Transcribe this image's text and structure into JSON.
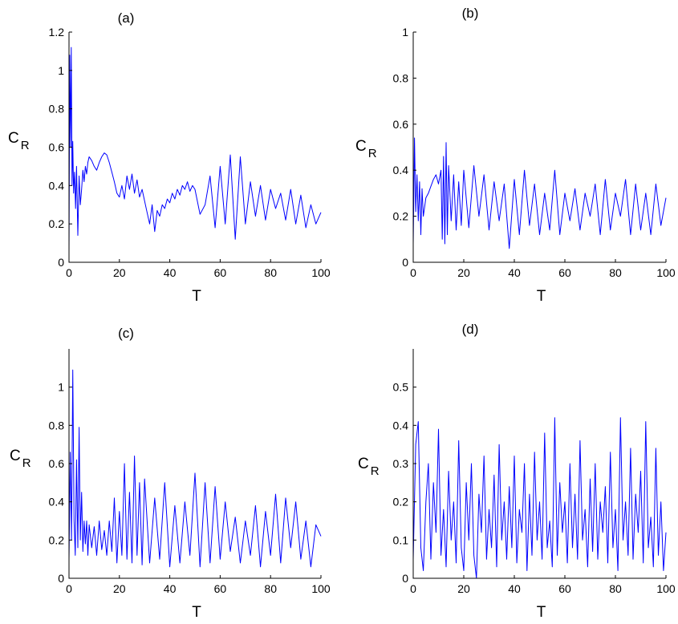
{
  "figure": {
    "line_color": "#0000ff",
    "axis_color": "#000000"
  },
  "chart_data": [
    {
      "type": "line",
      "title": "(a)",
      "xlabel": "T",
      "ylabel": "C",
      "ylabel_sub": "R",
      "xlim": [
        0,
        100
      ],
      "ylim": [
        0,
        1.2
      ],
      "xticks": [
        "0",
        "20",
        "40",
        "60",
        "80",
        "100"
      ],
      "yticks": [
        "0",
        "0.2",
        "0.4",
        "0.6",
        "0.8",
        "1",
        "1.2"
      ],
      "grid": false,
      "series": [
        {
          "x": [
            0,
            0.3,
            0.6,
            0.9,
            1.2,
            1.5,
            1.8,
            2.2,
            2.6,
            3,
            3.5,
            4,
            4.5,
            5,
            5.5,
            6,
            6.5,
            7,
            7.5,
            8,
            9,
            10,
            11,
            12,
            13,
            14,
            15,
            16,
            17,
            18,
            19,
            20,
            21,
            22,
            23,
            24,
            25,
            26,
            27,
            28,
            29,
            30,
            31,
            32,
            33,
            34,
            35,
            36,
            37,
            38,
            39,
            40,
            41,
            42,
            43,
            44,
            45,
            46,
            47,
            48,
            49,
            50,
            52,
            54,
            56,
            58,
            60,
            62,
            64,
            66,
            68,
            70,
            72,
            74,
            76,
            78,
            80,
            82,
            84,
            86,
            88,
            90,
            92,
            94,
            96,
            98,
            100
          ],
          "y": [
            0.05,
            1.08,
            0.6,
            1.12,
            0.4,
            0.63,
            0.36,
            0.47,
            0.28,
            0.5,
            0.14,
            0.45,
            0.3,
            0.38,
            0.48,
            0.42,
            0.5,
            0.46,
            0.52,
            0.55,
            0.53,
            0.5,
            0.48,
            0.52,
            0.55,
            0.57,
            0.56,
            0.52,
            0.47,
            0.42,
            0.36,
            0.34,
            0.4,
            0.33,
            0.45,
            0.38,
            0.46,
            0.36,
            0.43,
            0.34,
            0.38,
            0.32,
            0.26,
            0.2,
            0.3,
            0.16,
            0.27,
            0.24,
            0.3,
            0.28,
            0.33,
            0.31,
            0.36,
            0.33,
            0.38,
            0.35,
            0.4,
            0.38,
            0.42,
            0.37,
            0.4,
            0.38,
            0.25,
            0.3,
            0.45,
            0.18,
            0.5,
            0.2,
            0.56,
            0.12,
            0.55,
            0.2,
            0.42,
            0.24,
            0.4,
            0.22,
            0.38,
            0.28,
            0.36,
            0.22,
            0.38,
            0.2,
            0.35,
            0.18,
            0.3,
            0.2,
            0.26
          ]
        }
      ]
    },
    {
      "type": "line",
      "title": "(b)",
      "xlabel": "T",
      "ylabel": "C",
      "ylabel_sub": "R",
      "xlim": [
        0,
        100
      ],
      "ylim": [
        0,
        1
      ],
      "xticks": [
        "0",
        "20",
        "40",
        "60",
        "80",
        "100"
      ],
      "yticks": [
        "0",
        "0.2",
        "0.4",
        "0.6",
        "0.8",
        "1"
      ],
      "grid": false,
      "series": [
        {
          "x": [
            0,
            0.5,
            1,
            1.5,
            2,
            2.5,
            3,
            3.5,
            4,
            5,
            6,
            7,
            8,
            9,
            10,
            11,
            11.5,
            12,
            12.5,
            13,
            13.5,
            14,
            15,
            16,
            17,
            18,
            19,
            20,
            22,
            24,
            26,
            28,
            30,
            32,
            34,
            36,
            38,
            40,
            42,
            44,
            46,
            48,
            50,
            52,
            54,
            56,
            58,
            60,
            62,
            64,
            66,
            68,
            70,
            72,
            74,
            76,
            78,
            80,
            82,
            84,
            86,
            88,
            90,
            92,
            94,
            96,
            98,
            100
          ],
          "y": [
            0.08,
            0.54,
            0.22,
            0.38,
            0.18,
            0.35,
            0.12,
            0.32,
            0.2,
            0.28,
            0.3,
            0.33,
            0.36,
            0.38,
            0.34,
            0.4,
            0.1,
            0.46,
            0.08,
            0.52,
            0.12,
            0.42,
            0.18,
            0.38,
            0.14,
            0.35,
            0.16,
            0.4,
            0.15,
            0.42,
            0.2,
            0.38,
            0.14,
            0.35,
            0.18,
            0.34,
            0.06,
            0.36,
            0.12,
            0.4,
            0.16,
            0.34,
            0.12,
            0.3,
            0.14,
            0.4,
            0.12,
            0.3,
            0.18,
            0.32,
            0.14,
            0.3,
            0.2,
            0.34,
            0.12,
            0.36,
            0.14,
            0.3,
            0.2,
            0.36,
            0.12,
            0.34,
            0.14,
            0.3,
            0.12,
            0.34,
            0.16,
            0.28
          ]
        }
      ]
    },
    {
      "type": "line",
      "title": "(c)",
      "xlabel": "T",
      "ylabel": "C",
      "ylabel_sub": "R",
      "xlim": [
        0,
        100
      ],
      "ylim": [
        0,
        1.2
      ],
      "xticks": [
        "0",
        "20",
        "40",
        "60",
        "80",
        "100"
      ],
      "yticks": [
        "0",
        "0.2",
        "0.4",
        "0.6",
        "0.8",
        "1"
      ],
      "grid": false,
      "series": [
        {
          "x": [
            0,
            0.5,
            1,
            1.5,
            2,
            2.5,
            3,
            3.5,
            4,
            4.5,
            5,
            5.5,
            6,
            6.5,
            7,
            7.5,
            8,
            9,
            10,
            11,
            12,
            13,
            14,
            15,
            16,
            17,
            18,
            19,
            20,
            21,
            22,
            23,
            24,
            25,
            26,
            27,
            28,
            29,
            30,
            32,
            34,
            36,
            38,
            40,
            42,
            44,
            46,
            48,
            50,
            52,
            54,
            56,
            58,
            60,
            62,
            64,
            66,
            68,
            70,
            72,
            74,
            76,
            78,
            80,
            82,
            84,
            86,
            88,
            90,
            92,
            94,
            96,
            98,
            100
          ],
          "y": [
            0.1,
            0.66,
            0.2,
            1.09,
            0.3,
            0.12,
            0.62,
            0.16,
            0.79,
            0.2,
            0.45,
            0.14,
            0.3,
            0.18,
            0.3,
            0.12,
            0.28,
            0.16,
            0.27,
            0.12,
            0.3,
            0.15,
            0.25,
            0.12,
            0.3,
            0.14,
            0.42,
            0.08,
            0.35,
            0.12,
            0.6,
            0.1,
            0.45,
            0.08,
            0.64,
            0.12,
            0.5,
            0.07,
            0.52,
            0.08,
            0.42,
            0.1,
            0.5,
            0.06,
            0.38,
            0.08,
            0.4,
            0.12,
            0.55,
            0.06,
            0.5,
            0.08,
            0.48,
            0.1,
            0.4,
            0.14,
            0.32,
            0.08,
            0.3,
            0.12,
            0.38,
            0.06,
            0.35,
            0.12,
            0.44,
            0.08,
            0.42,
            0.16,
            0.4,
            0.1,
            0.3,
            0.06,
            0.28,
            0.22
          ]
        }
      ]
    },
    {
      "type": "line",
      "title": "(d)",
      "xlabel": "T",
      "ylabel": "C",
      "ylabel_sub": "R",
      "xlim": [
        0,
        100
      ],
      "ylim": [
        0,
        0.6
      ],
      "xticks": [
        "0",
        "20",
        "40",
        "60",
        "80",
        "100"
      ],
      "yticks": [
        "0",
        "0.1",
        "0.2",
        "0.3",
        "0.4",
        "0.5"
      ],
      "grid": false,
      "series": [
        {
          "x": [
            0,
            1,
            2,
            3,
            4,
            5,
            6,
            7,
            8,
            9,
            10,
            11,
            12,
            13,
            14,
            15,
            16,
            17,
            18,
            19,
            20,
            21,
            22,
            23,
            24,
            25,
            26,
            27,
            28,
            29,
            30,
            31,
            32,
            33,
            34,
            35,
            36,
            37,
            38,
            39,
            40,
            41,
            42,
            43,
            44,
            45,
            46,
            47,
            48,
            49,
            50,
            51,
            52,
            53,
            54,
            55,
            56,
            57,
            58,
            59,
            60,
            61,
            62,
            63,
            64,
            65,
            66,
            67,
            68,
            69,
            70,
            71,
            72,
            73,
            74,
            75,
            76,
            77,
            78,
            79,
            80,
            81,
            82,
            83,
            84,
            85,
            86,
            87,
            88,
            89,
            90,
            91,
            92,
            93,
            94,
            95,
            96,
            97,
            98,
            99,
            100
          ],
          "y": [
            0.05,
            0.35,
            0.41,
            0.08,
            0.02,
            0.2,
            0.3,
            0.05,
            0.25,
            0.12,
            0.39,
            0.06,
            0.18,
            0.03,
            0.28,
            0.1,
            0.2,
            0.04,
            0.36,
            0.08,
            0.02,
            0.25,
            0.1,
            0.3,
            0.06,
            0.0,
            0.22,
            0.12,
            0.32,
            0.05,
            0.18,
            0.08,
            0.27,
            0.03,
            0.35,
            0.1,
            0.2,
            0.05,
            0.24,
            0.08,
            0.32,
            0.04,
            0.18,
            0.12,
            0.3,
            0.02,
            0.22,
            0.06,
            0.33,
            0.1,
            0.2,
            0.05,
            0.38,
            0.08,
            0.15,
            0.03,
            0.42,
            0.06,
            0.25,
            0.12,
            0.2,
            0.04,
            0.3,
            0.08,
            0.22,
            0.05,
            0.36,
            0.1,
            0.18,
            0.03,
            0.26,
            0.07,
            0.3,
            0.05,
            0.2,
            0.12,
            0.24,
            0.04,
            0.33,
            0.08,
            0.18,
            0.02,
            0.42,
            0.1,
            0.2,
            0.06,
            0.34,
            0.05,
            0.22,
            0.12,
            0.28,
            0.04,
            0.41,
            0.08,
            0.16,
            0.03,
            0.34,
            0.06,
            0.2,
            0.02,
            0.12
          ]
        }
      ]
    }
  ]
}
